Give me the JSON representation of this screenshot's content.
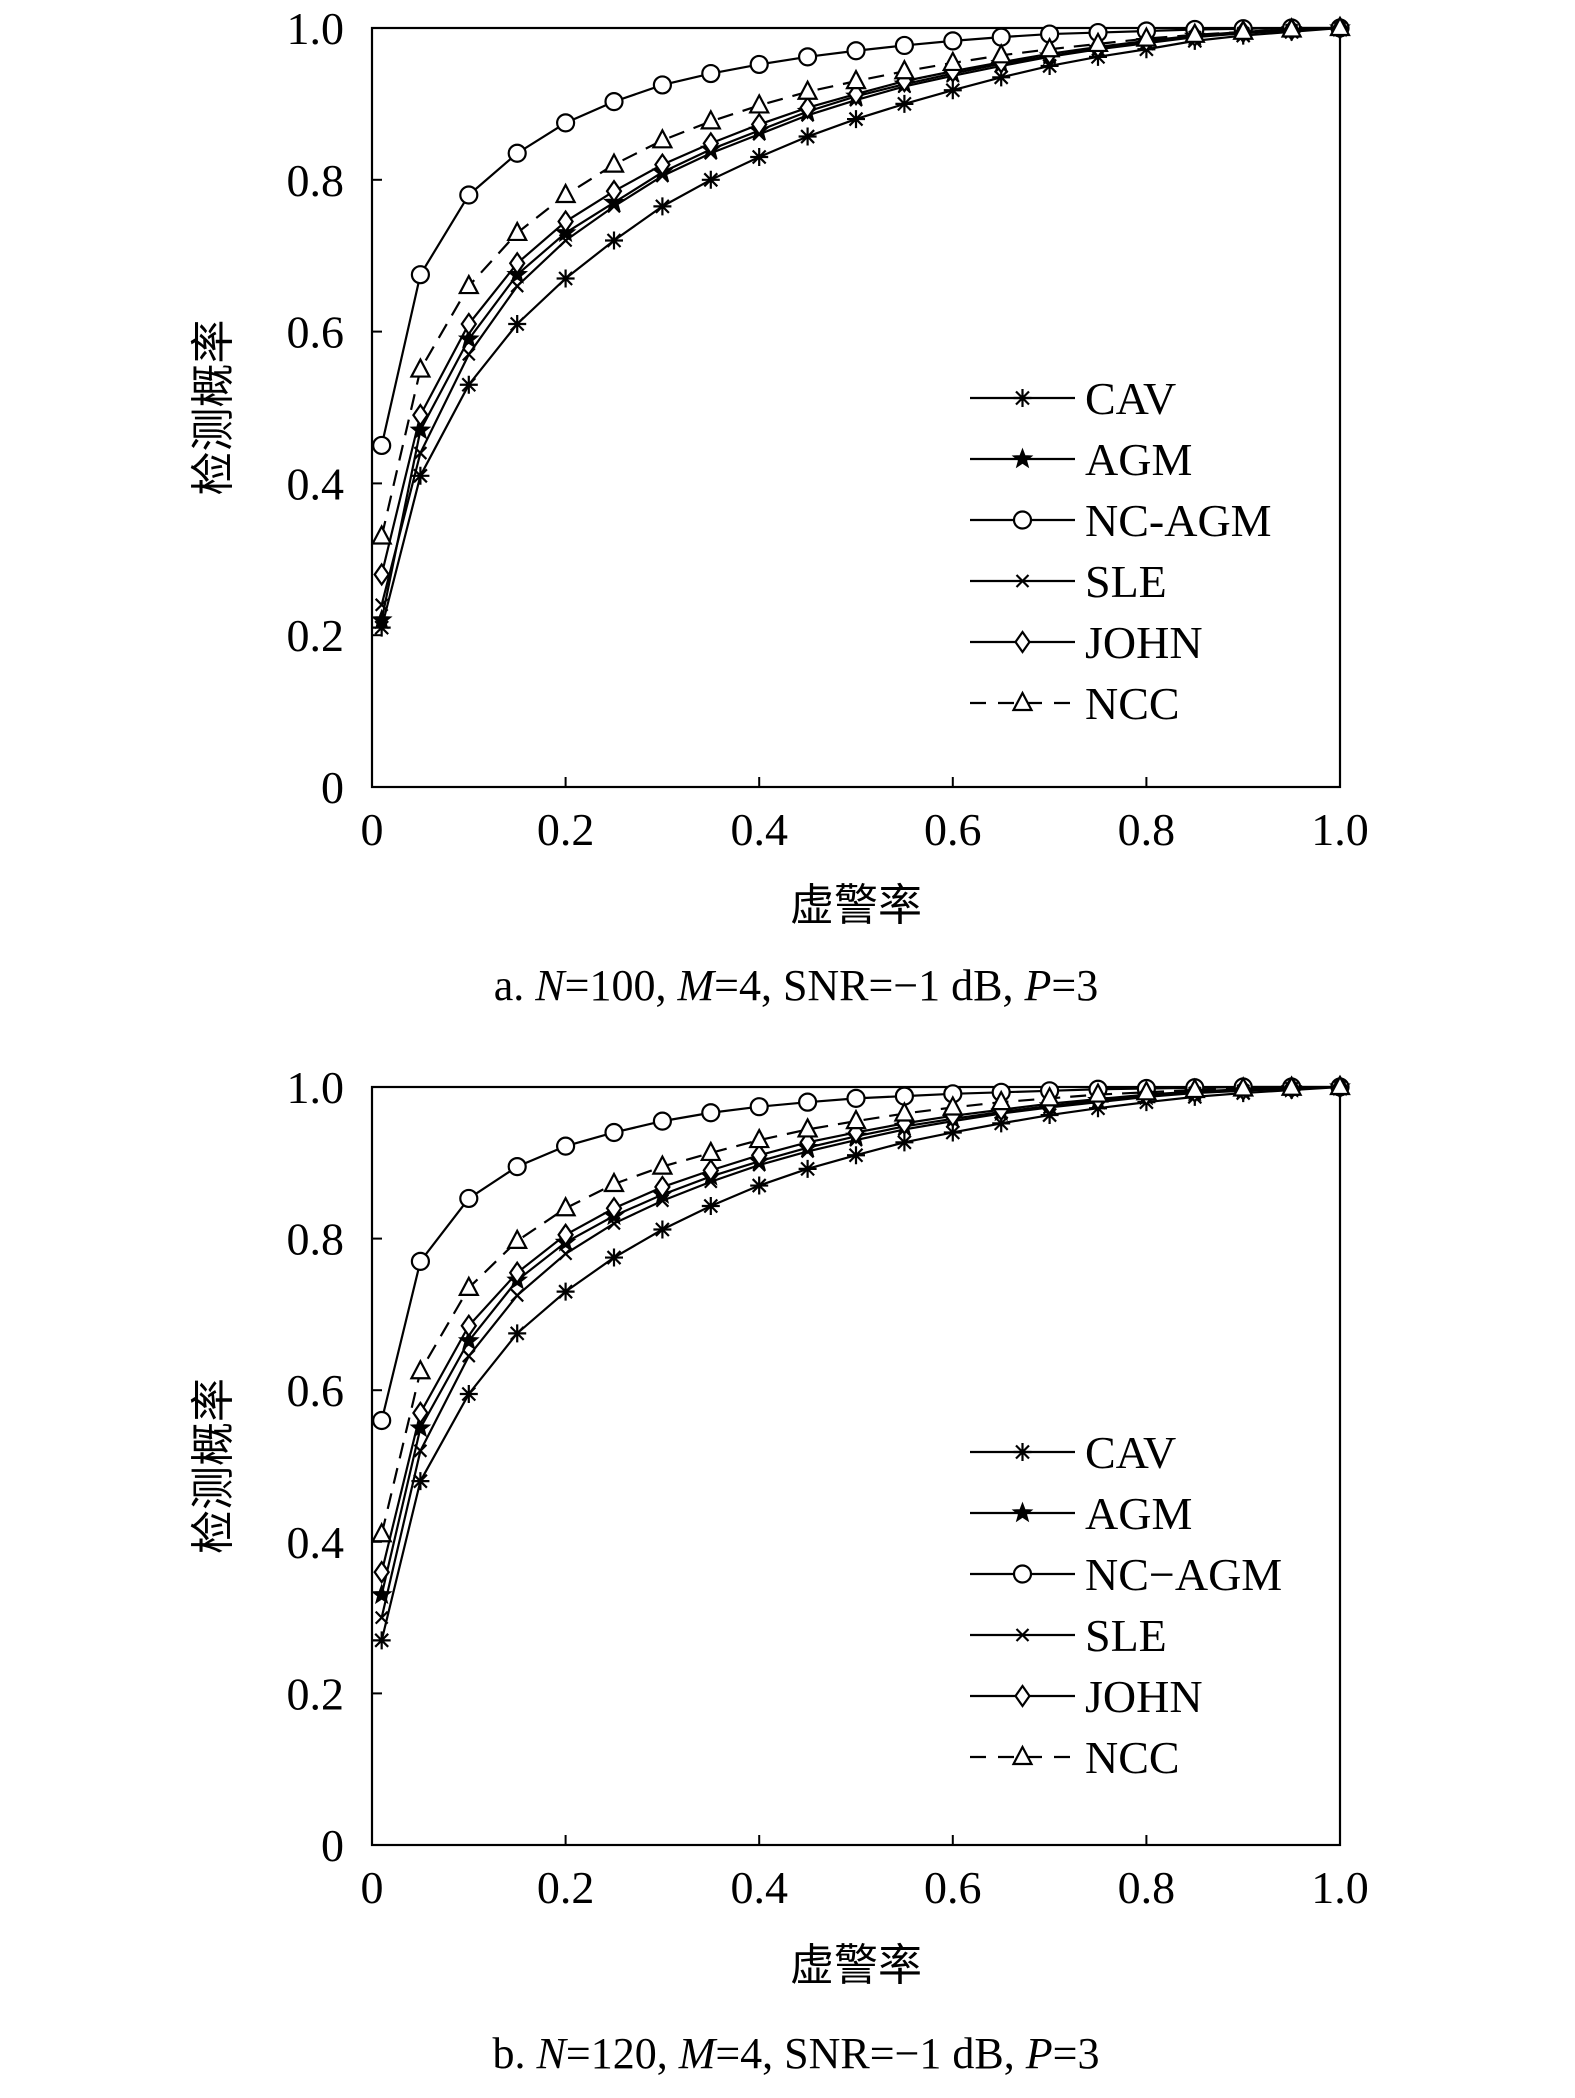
{
  "chart_data": [
    {
      "type": "line",
      "xlabel": "虚警率",
      "ylabel": "检测概率",
      "caption_prefix": "a. ",
      "caption": {
        "a": "a. ",
        "N_label": "N",
        "rest1": "=100, ",
        "M_label": "M",
        "rest2": "=4, SNR=−1 dB, ",
        "P_label": "P",
        "rest3": "=3"
      },
      "xlim": [
        0,
        1.0
      ],
      "ylim": [
        0,
        1.0
      ],
      "xticks": [
        "0",
        "0.2",
        "0.4",
        "0.6",
        "0.8",
        "1.0"
      ],
      "yticks": [
        "0",
        "0.2",
        "0.4",
        "0.6",
        "0.8",
        "1.0"
      ],
      "legend_position": "right",
      "x": [
        0.01,
        0.05,
        0.1,
        0.15,
        0.2,
        0.25,
        0.3,
        0.35,
        0.4,
        0.45,
        0.5,
        0.55,
        0.6,
        0.65,
        0.7,
        0.75,
        0.8,
        0.85,
        0.9,
        0.95,
        1.0
      ],
      "series": [
        {
          "name": "CAV",
          "marker": "asterisk",
          "dash": false,
          "values": [
            0.21,
            0.41,
            0.53,
            0.61,
            0.67,
            0.72,
            0.765,
            0.8,
            0.83,
            0.857,
            0.88,
            0.9,
            0.918,
            0.935,
            0.95,
            0.962,
            0.972,
            0.983,
            0.99,
            0.995,
            1.0
          ]
        },
        {
          "name": "AGM",
          "marker": "star",
          "dash": false,
          "values": [
            0.22,
            0.47,
            0.59,
            0.675,
            0.73,
            0.77,
            0.81,
            0.84,
            0.865,
            0.89,
            0.91,
            0.926,
            0.94,
            0.953,
            0.963,
            0.973,
            0.982,
            0.989,
            0.994,
            0.998,
            1.0
          ]
        },
        {
          "name": "NC-AGM",
          "marker": "circle",
          "dash": false,
          "values": [
            0.45,
            0.675,
            0.78,
            0.835,
            0.875,
            0.903,
            0.925,
            0.94,
            0.952,
            0.962,
            0.97,
            0.977,
            0.983,
            0.988,
            0.992,
            0.994,
            0.996,
            0.998,
            0.999,
            1.0,
            1.0
          ]
        },
        {
          "name": "SLE",
          "marker": "x",
          "dash": false,
          "values": [
            0.24,
            0.44,
            0.57,
            0.66,
            0.72,
            0.765,
            0.805,
            0.835,
            0.86,
            0.885,
            0.905,
            0.923,
            0.937,
            0.95,
            0.962,
            0.972,
            0.98,
            0.988,
            0.993,
            0.997,
            1.0
          ]
        },
        {
          "name": "JOHN",
          "marker": "diamond",
          "dash": false,
          "values": [
            0.28,
            0.49,
            0.61,
            0.69,
            0.745,
            0.785,
            0.82,
            0.848,
            0.873,
            0.895,
            0.913,
            0.93,
            0.943,
            0.955,
            0.966,
            0.975,
            0.983,
            0.99,
            0.995,
            0.998,
            1.0
          ]
        },
        {
          "name": "NCC",
          "marker": "triangle",
          "dash": true,
          "values": [
            0.33,
            0.55,
            0.66,
            0.73,
            0.78,
            0.82,
            0.852,
            0.877,
            0.898,
            0.916,
            0.93,
            0.943,
            0.954,
            0.964,
            0.972,
            0.979,
            0.986,
            0.991,
            0.995,
            0.998,
            1.0
          ]
        }
      ]
    },
    {
      "type": "line",
      "xlabel": "虚警率",
      "ylabel": "检测概率",
      "caption": {
        "a": "b. ",
        "N_label": "N",
        "rest1": "=120, ",
        "M_label": "M",
        "rest2": "=4, SNR=−1 dB, ",
        "P_label": "P",
        "rest3": "=3"
      },
      "xlim": [
        0,
        1.0
      ],
      "ylim": [
        0,
        1.0
      ],
      "xticks": [
        "0",
        "0.2",
        "0.4",
        "0.6",
        "0.8",
        "1.0"
      ],
      "yticks": [
        "0",
        "0.2",
        "0.4",
        "0.6",
        "0.8",
        "1.0"
      ],
      "legend_position": "right",
      "x": [
        0.01,
        0.05,
        0.1,
        0.15,
        0.2,
        0.25,
        0.3,
        0.35,
        0.4,
        0.45,
        0.5,
        0.55,
        0.6,
        0.65,
        0.7,
        0.75,
        0.8,
        0.85,
        0.9,
        0.95,
        1.0
      ],
      "series": [
        {
          "name": "CAV",
          "marker": "asterisk",
          "dash": false,
          "values": [
            0.27,
            0.48,
            0.595,
            0.675,
            0.73,
            0.775,
            0.812,
            0.843,
            0.87,
            0.892,
            0.91,
            0.927,
            0.94,
            0.952,
            0.963,
            0.972,
            0.98,
            0.987,
            0.992,
            0.996,
            1.0
          ]
        },
        {
          "name": "AGM",
          "marker": "star",
          "dash": false,
          "values": [
            0.33,
            0.55,
            0.665,
            0.745,
            0.795,
            0.83,
            0.858,
            0.882,
            0.902,
            0.92,
            0.935,
            0.948,
            0.958,
            0.967,
            0.975,
            0.982,
            0.988,
            0.993,
            0.996,
            0.998,
            1.0
          ]
        },
        {
          "name": "NC−AGM",
          "marker": "circle",
          "dash": false,
          "values": [
            0.56,
            0.77,
            0.853,
            0.895,
            0.922,
            0.94,
            0.955,
            0.966,
            0.974,
            0.98,
            0.985,
            0.988,
            0.991,
            0.993,
            0.995,
            0.997,
            0.998,
            0.999,
            1.0,
            1.0,
            1.0
          ]
        },
        {
          "name": "SLE",
          "marker": "x",
          "dash": false,
          "values": [
            0.3,
            0.52,
            0.645,
            0.725,
            0.78,
            0.82,
            0.85,
            0.875,
            0.897,
            0.915,
            0.93,
            0.944,
            0.955,
            0.965,
            0.973,
            0.98,
            0.987,
            0.992,
            0.995,
            0.998,
            1.0
          ]
        },
        {
          "name": "JOHN",
          "marker": "diamond",
          "dash": false,
          "values": [
            0.36,
            0.57,
            0.685,
            0.755,
            0.805,
            0.84,
            0.868,
            0.89,
            0.91,
            0.927,
            0.94,
            0.952,
            0.962,
            0.97,
            0.978,
            0.984,
            0.99,
            0.994,
            0.997,
            0.999,
            1.0
          ]
        },
        {
          "name": "NCC",
          "marker": "triangle",
          "dash": true,
          "values": [
            0.41,
            0.625,
            0.735,
            0.797,
            0.84,
            0.872,
            0.895,
            0.913,
            0.93,
            0.944,
            0.955,
            0.965,
            0.973,
            0.98,
            0.985,
            0.99,
            0.993,
            0.996,
            0.998,
            0.999,
            1.0
          ]
        }
      ]
    }
  ]
}
